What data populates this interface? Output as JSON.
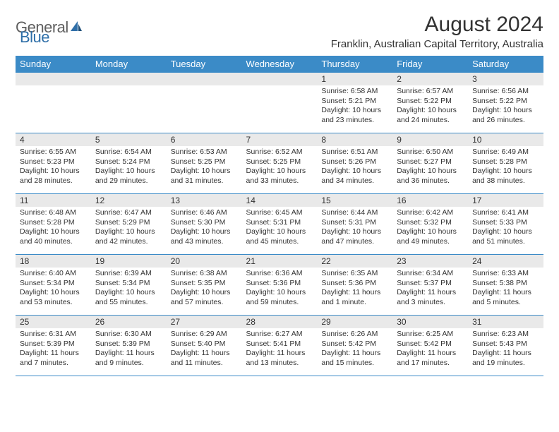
{
  "logo": {
    "part1": "General",
    "part2": "Blue"
  },
  "title": "August 2024",
  "location": "Franklin, Australian Capital Territory, Australia",
  "colors": {
    "header_bg": "#3b8bc7",
    "header_text": "#ffffff",
    "daynum_bg": "#e9e9e9",
    "border": "#3b8bc7",
    "logo_gray": "#5f5f5f",
    "logo_blue": "#2f6fa8",
    "text": "#333333",
    "background": "#ffffff"
  },
  "typography": {
    "title_fontsize": 30,
    "location_fontsize": 15,
    "dayheader_fontsize": 13,
    "daynum_fontsize": 12,
    "content_fontsize": 10.5
  },
  "day_headers": [
    "Sunday",
    "Monday",
    "Tuesday",
    "Wednesday",
    "Thursday",
    "Friday",
    "Saturday"
  ],
  "weeks": [
    [
      {
        "n": "",
        "lines": []
      },
      {
        "n": "",
        "lines": []
      },
      {
        "n": "",
        "lines": []
      },
      {
        "n": "",
        "lines": []
      },
      {
        "n": "1",
        "lines": [
          "Sunrise: 6:58 AM",
          "Sunset: 5:21 PM",
          "Daylight: 10 hours and 23 minutes."
        ]
      },
      {
        "n": "2",
        "lines": [
          "Sunrise: 6:57 AM",
          "Sunset: 5:22 PM",
          "Daylight: 10 hours and 24 minutes."
        ]
      },
      {
        "n": "3",
        "lines": [
          "Sunrise: 6:56 AM",
          "Sunset: 5:22 PM",
          "Daylight: 10 hours and 26 minutes."
        ]
      }
    ],
    [
      {
        "n": "4",
        "lines": [
          "Sunrise: 6:55 AM",
          "Sunset: 5:23 PM",
          "Daylight: 10 hours and 28 minutes."
        ]
      },
      {
        "n": "5",
        "lines": [
          "Sunrise: 6:54 AM",
          "Sunset: 5:24 PM",
          "Daylight: 10 hours and 29 minutes."
        ]
      },
      {
        "n": "6",
        "lines": [
          "Sunrise: 6:53 AM",
          "Sunset: 5:25 PM",
          "Daylight: 10 hours and 31 minutes."
        ]
      },
      {
        "n": "7",
        "lines": [
          "Sunrise: 6:52 AM",
          "Sunset: 5:25 PM",
          "Daylight: 10 hours and 33 minutes."
        ]
      },
      {
        "n": "8",
        "lines": [
          "Sunrise: 6:51 AM",
          "Sunset: 5:26 PM",
          "Daylight: 10 hours and 34 minutes."
        ]
      },
      {
        "n": "9",
        "lines": [
          "Sunrise: 6:50 AM",
          "Sunset: 5:27 PM",
          "Daylight: 10 hours and 36 minutes."
        ]
      },
      {
        "n": "10",
        "lines": [
          "Sunrise: 6:49 AM",
          "Sunset: 5:28 PM",
          "Daylight: 10 hours and 38 minutes."
        ]
      }
    ],
    [
      {
        "n": "11",
        "lines": [
          "Sunrise: 6:48 AM",
          "Sunset: 5:28 PM",
          "Daylight: 10 hours and 40 minutes."
        ]
      },
      {
        "n": "12",
        "lines": [
          "Sunrise: 6:47 AM",
          "Sunset: 5:29 PM",
          "Daylight: 10 hours and 42 minutes."
        ]
      },
      {
        "n": "13",
        "lines": [
          "Sunrise: 6:46 AM",
          "Sunset: 5:30 PM",
          "Daylight: 10 hours and 43 minutes."
        ]
      },
      {
        "n": "14",
        "lines": [
          "Sunrise: 6:45 AM",
          "Sunset: 5:31 PM",
          "Daylight: 10 hours and 45 minutes."
        ]
      },
      {
        "n": "15",
        "lines": [
          "Sunrise: 6:44 AM",
          "Sunset: 5:31 PM",
          "Daylight: 10 hours and 47 minutes."
        ]
      },
      {
        "n": "16",
        "lines": [
          "Sunrise: 6:42 AM",
          "Sunset: 5:32 PM",
          "Daylight: 10 hours and 49 minutes."
        ]
      },
      {
        "n": "17",
        "lines": [
          "Sunrise: 6:41 AM",
          "Sunset: 5:33 PM",
          "Daylight: 10 hours and 51 minutes."
        ]
      }
    ],
    [
      {
        "n": "18",
        "lines": [
          "Sunrise: 6:40 AM",
          "Sunset: 5:34 PM",
          "Daylight: 10 hours and 53 minutes."
        ]
      },
      {
        "n": "19",
        "lines": [
          "Sunrise: 6:39 AM",
          "Sunset: 5:34 PM",
          "Daylight: 10 hours and 55 minutes."
        ]
      },
      {
        "n": "20",
        "lines": [
          "Sunrise: 6:38 AM",
          "Sunset: 5:35 PM",
          "Daylight: 10 hours and 57 minutes."
        ]
      },
      {
        "n": "21",
        "lines": [
          "Sunrise: 6:36 AM",
          "Sunset: 5:36 PM",
          "Daylight: 10 hours and 59 minutes."
        ]
      },
      {
        "n": "22",
        "lines": [
          "Sunrise: 6:35 AM",
          "Sunset: 5:36 PM",
          "Daylight: 11 hours and 1 minute."
        ]
      },
      {
        "n": "23",
        "lines": [
          "Sunrise: 6:34 AM",
          "Sunset: 5:37 PM",
          "Daylight: 11 hours and 3 minutes."
        ]
      },
      {
        "n": "24",
        "lines": [
          "Sunrise: 6:33 AM",
          "Sunset: 5:38 PM",
          "Daylight: 11 hours and 5 minutes."
        ]
      }
    ],
    [
      {
        "n": "25",
        "lines": [
          "Sunrise: 6:31 AM",
          "Sunset: 5:39 PM",
          "Daylight: 11 hours and 7 minutes."
        ]
      },
      {
        "n": "26",
        "lines": [
          "Sunrise: 6:30 AM",
          "Sunset: 5:39 PM",
          "Daylight: 11 hours and 9 minutes."
        ]
      },
      {
        "n": "27",
        "lines": [
          "Sunrise: 6:29 AM",
          "Sunset: 5:40 PM",
          "Daylight: 11 hours and 11 minutes."
        ]
      },
      {
        "n": "28",
        "lines": [
          "Sunrise: 6:27 AM",
          "Sunset: 5:41 PM",
          "Daylight: 11 hours and 13 minutes."
        ]
      },
      {
        "n": "29",
        "lines": [
          "Sunrise: 6:26 AM",
          "Sunset: 5:42 PM",
          "Daylight: 11 hours and 15 minutes."
        ]
      },
      {
        "n": "30",
        "lines": [
          "Sunrise: 6:25 AM",
          "Sunset: 5:42 PM",
          "Daylight: 11 hours and 17 minutes."
        ]
      },
      {
        "n": "31",
        "lines": [
          "Sunrise: 6:23 AM",
          "Sunset: 5:43 PM",
          "Daylight: 11 hours and 19 minutes."
        ]
      }
    ]
  ]
}
